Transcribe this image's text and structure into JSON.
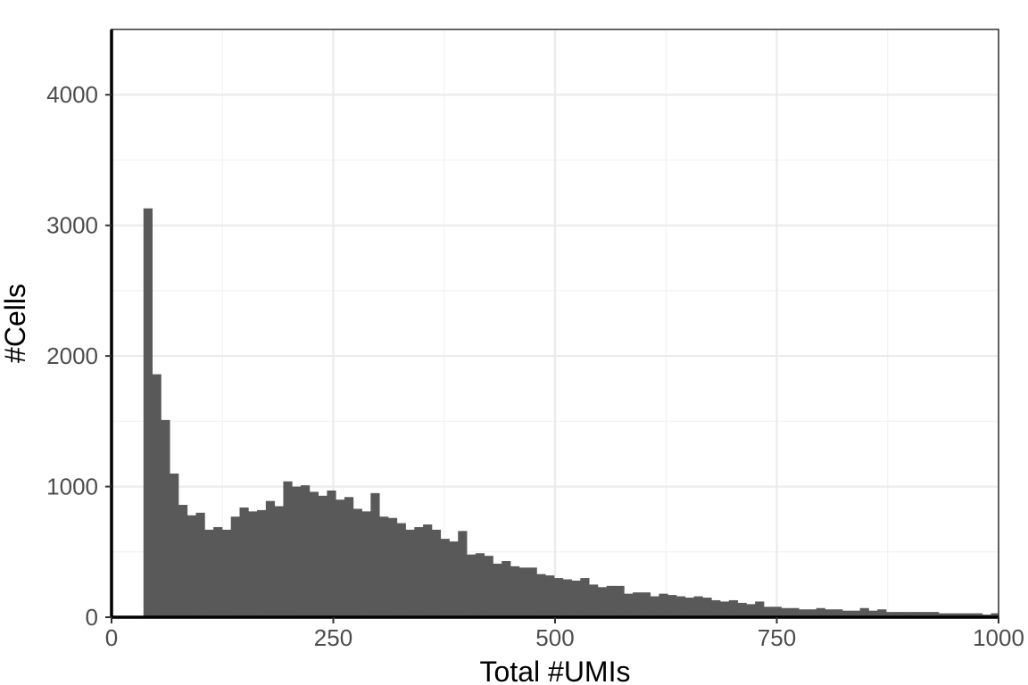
{
  "chart_data": {
    "type": "bar",
    "subtype": "histogram",
    "xlabel": "Total #UMIs",
    "ylabel": "#Cells",
    "xlim": [
      0,
      1000
    ],
    "ylim": [
      0,
      4500
    ],
    "x_ticks": [
      0,
      250,
      500,
      750,
      1000
    ],
    "x_tick_labels": [
      "0",
      "250",
      "500",
      "750",
      "1000"
    ],
    "y_ticks": [
      0,
      1000,
      2000,
      3000,
      4000
    ],
    "y_tick_labels": [
      "0",
      "1000",
      "2000",
      "3000",
      "4000"
    ],
    "grid": true,
    "bin_start": 36,
    "bin_width": 9.85,
    "values": [
      3130,
      1860,
      1510,
      1100,
      860,
      780,
      800,
      670,
      690,
      670,
      770,
      840,
      810,
      820,
      890,
      850,
      1040,
      1000,
      1010,
      960,
      930,
      970,
      900,
      920,
      830,
      810,
      950,
      770,
      760,
      720,
      670,
      690,
      710,
      670,
      600,
      580,
      660,
      480,
      490,
      470,
      410,
      430,
      390,
      380,
      380,
      330,
      320,
      300,
      290,
      280,
      300,
      250,
      230,
      240,
      240,
      180,
      190,
      190,
      160,
      180,
      170,
      160,
      150,
      160,
      150,
      130,
      120,
      130,
      110,
      100,
      120,
      80,
      80,
      70,
      70,
      60,
      60,
      70,
      60,
      60,
      50,
      50,
      70,
      50,
      60,
      40,
      40,
      40,
      40,
      40,
      40,
      30,
      30,
      30,
      30,
      30,
      20,
      30,
      20,
      20
    ],
    "colors": {
      "bar": "#595959",
      "panel_border": "#333333",
      "grid_major": "#ebebeb",
      "grid_minor": "#f2f2f2",
      "axis_line": "#000000",
      "tick_text": "#4d4d4d"
    }
  }
}
